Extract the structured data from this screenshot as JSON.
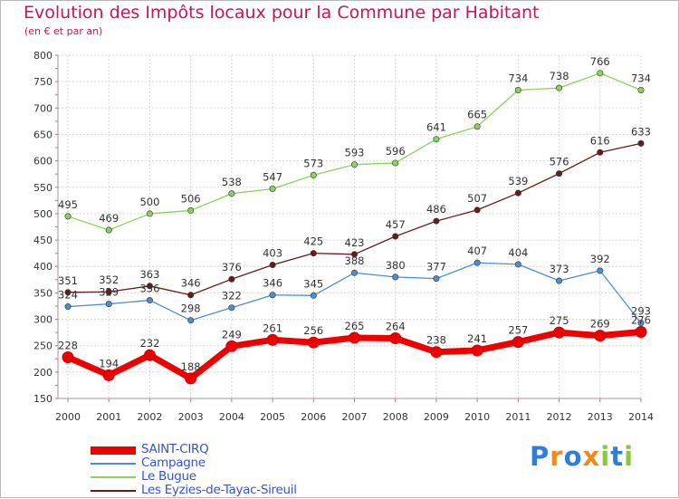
{
  "header": {
    "title": "Evolution des Impôts locaux pour la Commune par Habitant",
    "subtitle": "(en € et par an)"
  },
  "chart_data": {
    "type": "line",
    "title": "Evolution des Impôts locaux pour la Commune par Habitant",
    "subtitle": "(en € et par an)",
    "xlabel": "",
    "ylabel": "",
    "x": [
      "2000",
      "2001",
      "2002",
      "2003",
      "2004",
      "2005",
      "2006",
      "2007",
      "2008",
      "2009",
      "2010",
      "2011",
      "2012",
      "2013",
      "2014"
    ],
    "ylim": [
      150,
      800
    ],
    "yticks": [
      150,
      200,
      250,
      300,
      350,
      400,
      450,
      500,
      550,
      600,
      650,
      700,
      750,
      800
    ],
    "grid": true,
    "legend_position": "bottom-left",
    "series": [
      {
        "name": "SAINT-CIRQ",
        "color": "#ee0000",
        "values": [
          228,
          194,
          232,
          188,
          249,
          261,
          256,
          265,
          264,
          238,
          241,
          257,
          275,
          269,
          276
        ]
      },
      {
        "name": "Campagne",
        "color": "#4a8fd4",
        "values": [
          324,
          329,
          336,
          298,
          322,
          346,
          345,
          388,
          380,
          377,
          407,
          404,
          373,
          392,
          293
        ]
      },
      {
        "name": "Le Bugue",
        "color": "#8cd15a",
        "values": [
          495,
          469,
          500,
          506,
          538,
          547,
          573,
          593,
          596,
          641,
          665,
          734,
          738,
          766,
          734
        ]
      },
      {
        "name": "Les Eyzies-de-Tayac-Sireuil",
        "color": "#6b1a1a",
        "values": [
          351,
          352,
          363,
          346,
          376,
          403,
          425,
          423,
          457,
          486,
          507,
          539,
          576,
          616,
          633
        ]
      }
    ]
  },
  "legend": {
    "items": [
      {
        "label": "SAINT-CIRQ",
        "color": "#ee0000"
      },
      {
        "label": "Campagne",
        "color": "#4a8fd4"
      },
      {
        "label": "Le Bugue",
        "color": "#8cd15a"
      },
      {
        "label": "Les Eyzies-de-Tayac-Sireuil",
        "color": "#6b1a1a"
      }
    ]
  },
  "logo": {
    "letters": [
      {
        "ch": "P",
        "color": "#2f7fd8"
      },
      {
        "ch": "r",
        "color": "#f08a1c"
      },
      {
        "ch": "o",
        "color": "#2f7fd8"
      },
      {
        "ch": "x",
        "color": "#f08a1c"
      },
      {
        "ch": "i",
        "color": "#8cc63f"
      },
      {
        "ch": "t",
        "color": "#2f7fd8"
      },
      {
        "ch": "i",
        "color": "#8cc63f"
      }
    ]
  }
}
